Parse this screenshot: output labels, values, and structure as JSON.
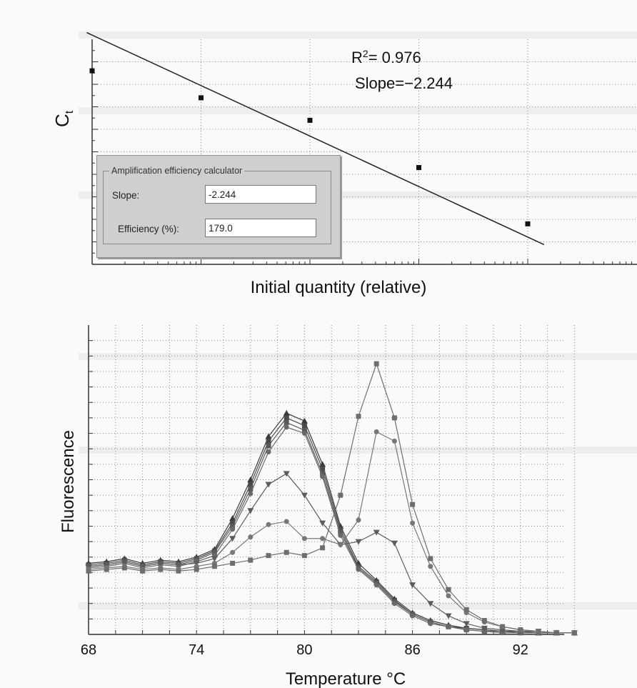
{
  "standard_curve": {
    "r2_text": "= 0.976",
    "slope_text": "Slope=−2.244",
    "xlabel": "Initial quantity (relative)",
    "ylabel": "C",
    "ylabel_sub": "t"
  },
  "efficiency_panel": {
    "title": "Amplification efficiency calculator",
    "slope_label": "Slope:",
    "slope_value": "-2.244",
    "efficiency_label": "Efficiency (%):",
    "efficiency_value": "179.0"
  },
  "chart_data": [
    {
      "type": "scatter",
      "title": "",
      "xlabel": "Initial quantity (relative)",
      "ylabel": "Ct",
      "annotations": [
        "R2 = 0.976",
        "Slope=−2.244"
      ],
      "x": [
        0,
        1,
        2,
        3,
        4
      ],
      "values": [
        8.6,
        7.4,
        6.4,
        4.3,
        1.8
      ],
      "trendline": {
        "slope": -2.244,
        "r2": 0.976
      },
      "grid": true
    },
    {
      "type": "line",
      "title": "",
      "xlabel": "Temperature °C",
      "ylabel": "Fluorescence",
      "xticks": [
        68,
        74,
        80,
        86,
        92
      ],
      "xlim": [
        68,
        95.5
      ],
      "ylim": [
        0,
        20
      ],
      "grid": true,
      "x": [
        68,
        69,
        70,
        71,
        72,
        73,
        74,
        75,
        76,
        77,
        78,
        79,
        80,
        81,
        82,
        83,
        84,
        85,
        86,
        87,
        88,
        89,
        90,
        91,
        92,
        93,
        94,
        95
      ],
      "series": [
        {
          "marker": "triangle",
          "values": [
            4.6,
            4.7,
            4.9,
            4.6,
            4.8,
            4.7,
            5.0,
            5.5,
            7.5,
            10.0,
            12.8,
            14.3,
            13.8,
            11.0,
            7.0,
            4.6,
            3.5,
            2.3,
            1.4,
            0.9,
            0.6,
            0.4,
            0.3,
            0.2,
            0.2,
            0.1,
            0.1,
            0.1
          ]
        },
        {
          "marker": "square",
          "values": [
            4.5,
            4.6,
            4.8,
            4.5,
            4.7,
            4.6,
            4.9,
            5.4,
            7.2,
            9.7,
            12.5,
            14.0,
            13.5,
            10.7,
            6.8,
            4.4,
            3.4,
            2.2,
            1.3,
            0.8,
            0.5,
            0.4,
            0.3,
            0.2,
            0.2,
            0.1,
            0.1,
            0.1
          ]
        },
        {
          "marker": "square",
          "values": [
            4.4,
            4.5,
            4.7,
            4.4,
            4.6,
            4.5,
            4.8,
            5.3,
            7.0,
            9.4,
            12.2,
            13.7,
            13.2,
            10.4,
            6.6,
            4.3,
            3.3,
            2.1,
            1.3,
            0.8,
            0.5,
            0.3,
            0.2,
            0.2,
            0.1,
            0.1,
            0.1,
            0.1
          ]
        },
        {
          "marker": "circle",
          "values": [
            4.3,
            4.4,
            4.6,
            4.3,
            4.5,
            4.4,
            4.7,
            5.1,
            6.8,
            9.1,
            11.8,
            13.4,
            13.0,
            10.2,
            6.4,
            4.2,
            3.2,
            2.0,
            1.2,
            0.7,
            0.5,
            0.3,
            0.2,
            0.1,
            0.1,
            0.1,
            0.1,
            0.1
          ]
        },
        {
          "marker": "triangle-down",
          "values": [
            4.4,
            4.5,
            4.7,
            4.4,
            4.6,
            4.5,
            4.6,
            4.9,
            6.2,
            8.0,
            9.7,
            10.4,
            9.0,
            7.2,
            5.8,
            6.0,
            6.6,
            5.9,
            3.2,
            2.0,
            1.2,
            0.7,
            0.4,
            0.3,
            0.2,
            0.2,
            0.1,
            0.1
          ]
        },
        {
          "marker": "circle",
          "values": [
            4.2,
            4.3,
            4.4,
            4.2,
            4.3,
            4.2,
            4.4,
            4.6,
            5.3,
            6.3,
            7.1,
            7.3,
            6.2,
            6.2,
            5.8,
            7.4,
            13.1,
            12.5,
            7.2,
            4.4,
            2.5,
            1.4,
            0.8,
            0.5,
            0.3,
            0.2,
            0.1,
            0.1
          ]
        },
        {
          "marker": "square",
          "values": [
            4.1,
            4.2,
            4.3,
            4.1,
            4.2,
            4.1,
            4.2,
            4.4,
            4.6,
            4.8,
            5.1,
            5.3,
            5.1,
            5.6,
            9.0,
            14.1,
            17.5,
            14.0,
            8.4,
            4.9,
            2.9,
            1.6,
            0.9,
            0.5,
            0.3,
            0.2,
            0.1,
            0.1
          ]
        }
      ]
    }
  ]
}
